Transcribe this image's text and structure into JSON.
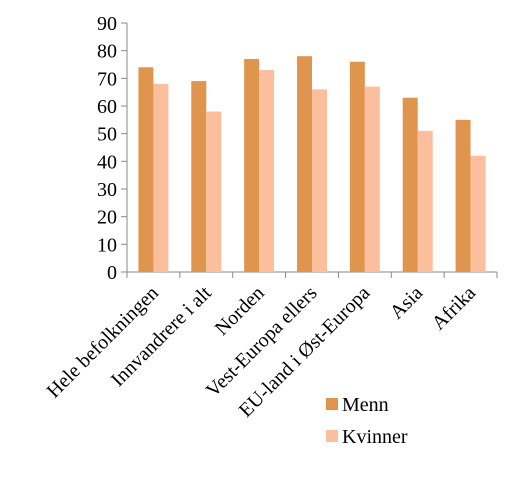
{
  "chart_data": {
    "type": "bar",
    "categories": [
      "Hele befolkningen",
      "Innvandrere i alt",
      "Norden",
      "Vest-Europa ellers",
      "EU-land i Øst-Europa",
      "Asia",
      "Afrika"
    ],
    "series": [
      {
        "name": "Menn",
        "color": "#e0954f",
        "values": [
          74,
          69,
          77,
          78,
          76,
          63,
          55
        ]
      },
      {
        "name": "Kvinner",
        "color": "#fbbf9d",
        "values": [
          68,
          58,
          73,
          66,
          67,
          51,
          42
        ]
      }
    ],
    "ylim": [
      0,
      90
    ],
    "yticks": [
      0,
      10,
      20,
      30,
      40,
      50,
      60,
      70,
      80,
      90
    ],
    "legend": "bottom-right"
  }
}
